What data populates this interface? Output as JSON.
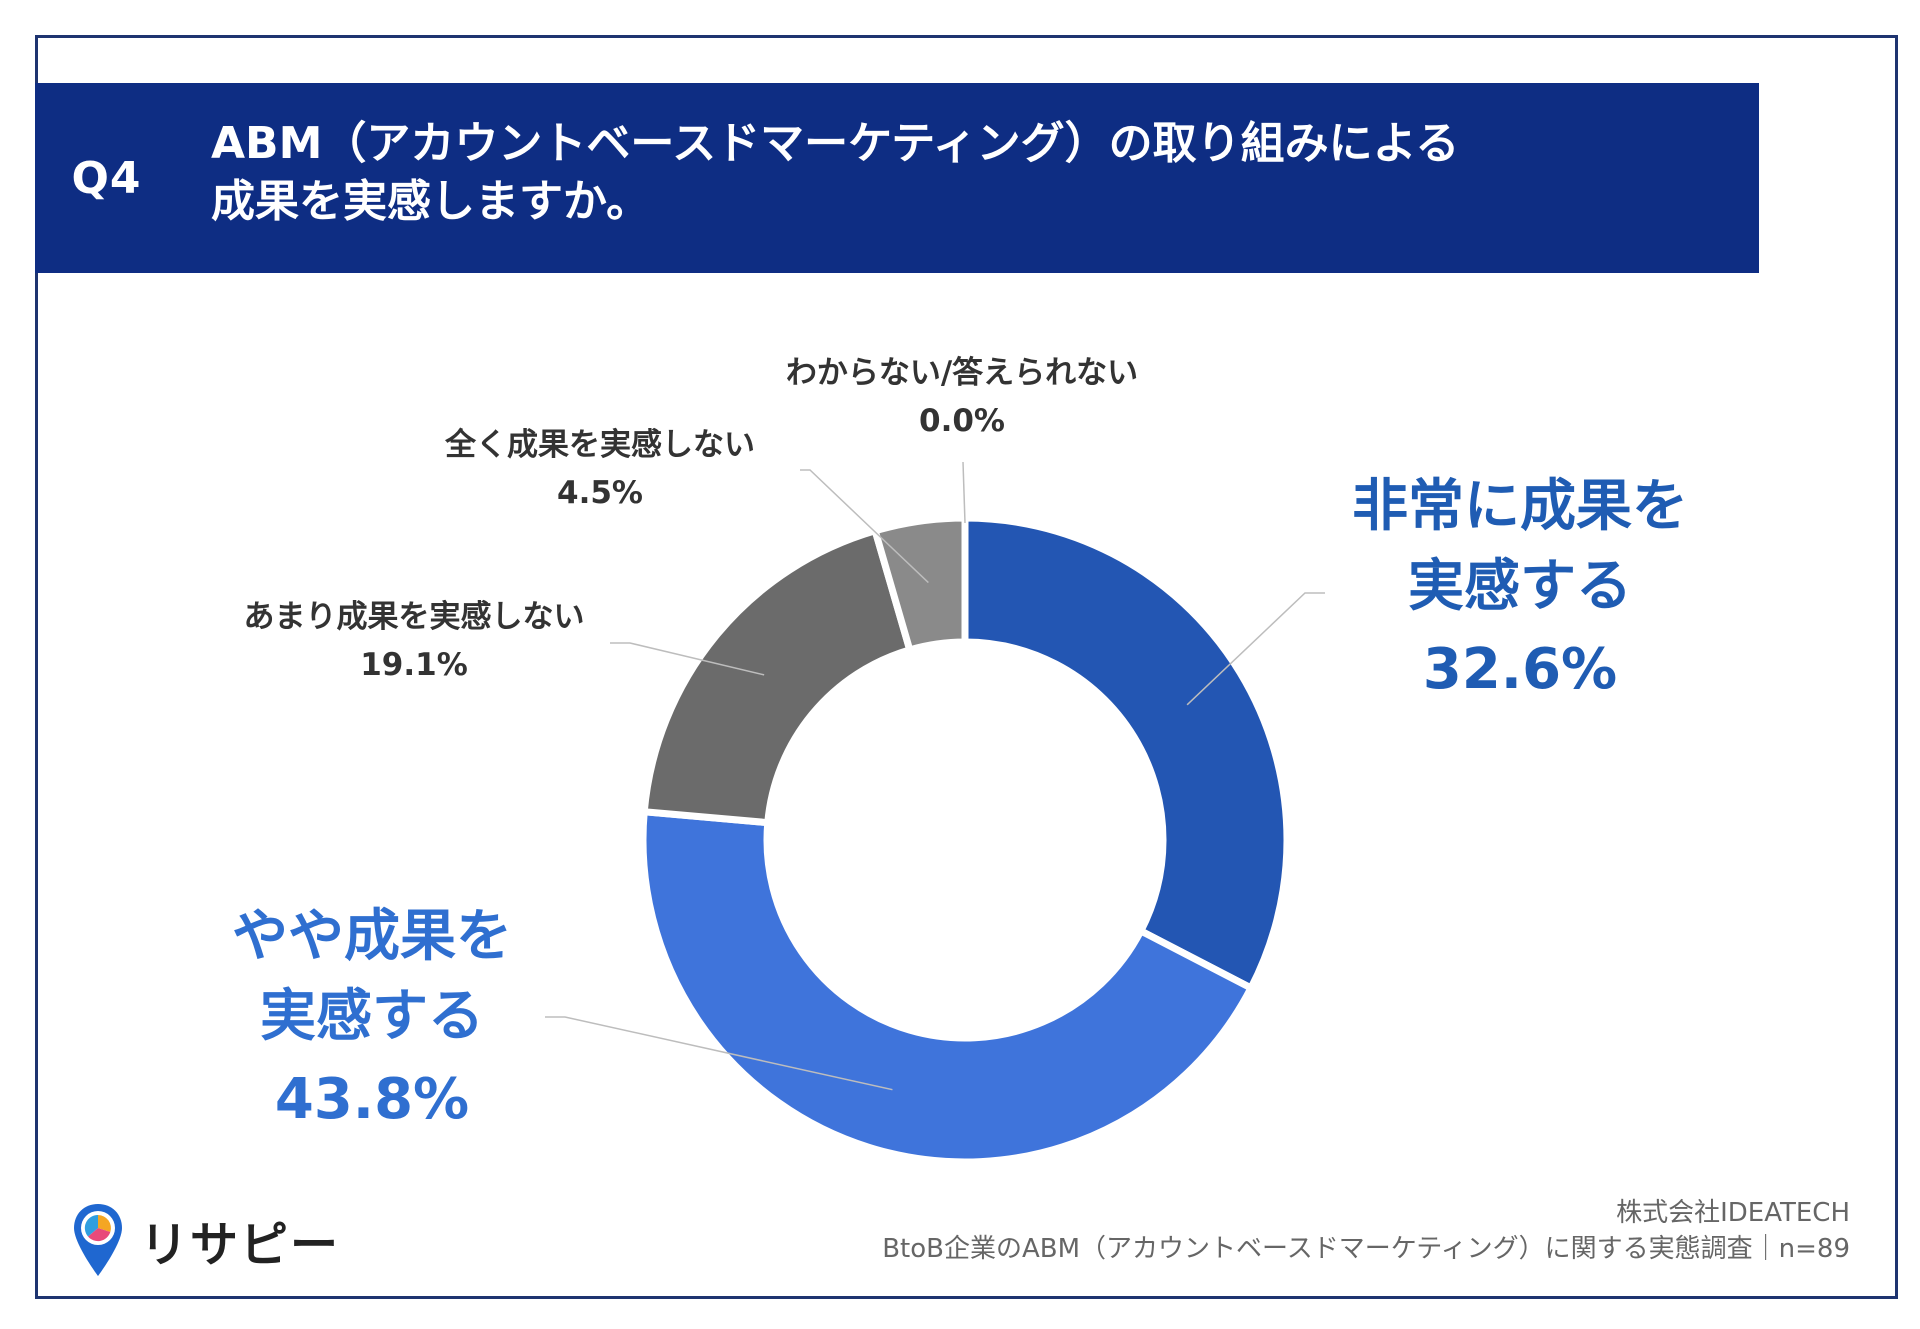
{
  "header": {
    "question_no": "Q4",
    "title_line1": "ABM（アカウントベースドマーケティング）の取り組みによる",
    "title_line2": "成果を実感しますか。"
  },
  "chart_data": {
    "type": "pie",
    "variant": "donut",
    "slices": [
      {
        "label_lines": [
          "非常に成果を",
          "実感する"
        ],
        "value_text": "32.6%",
        "value": 32.6,
        "color": "#2356b3"
      },
      {
        "label_lines": [
          "やや成果を",
          "実感する"
        ],
        "value_text": "43.8%",
        "value": 43.8,
        "color": "#3f74db"
      },
      {
        "label_lines": [
          "あまり成果を実感しない"
        ],
        "value_text": "19.1%",
        "value": 19.1,
        "color": "#6b6b6b"
      },
      {
        "label_lines": [
          "全く成果を実感しない"
        ],
        "value_text": "4.5%",
        "value": 4.5,
        "color": "#8a8a8a"
      },
      {
        "label_lines": [
          "わからない/答えられない"
        ],
        "value_text": "0.0%",
        "value": 0.0,
        "color": "#b0b0b0"
      }
    ],
    "start_angle_deg": 0,
    "direction": "clockwise"
  },
  "footer": {
    "company": "株式会社IDEATECH",
    "survey": "BtoB企業のABM（アカウントベースドマーケティング）に関する実態調査｜n=89"
  },
  "logo": {
    "text": "リサピー",
    "icon": "map-pin-pie-icon"
  }
}
